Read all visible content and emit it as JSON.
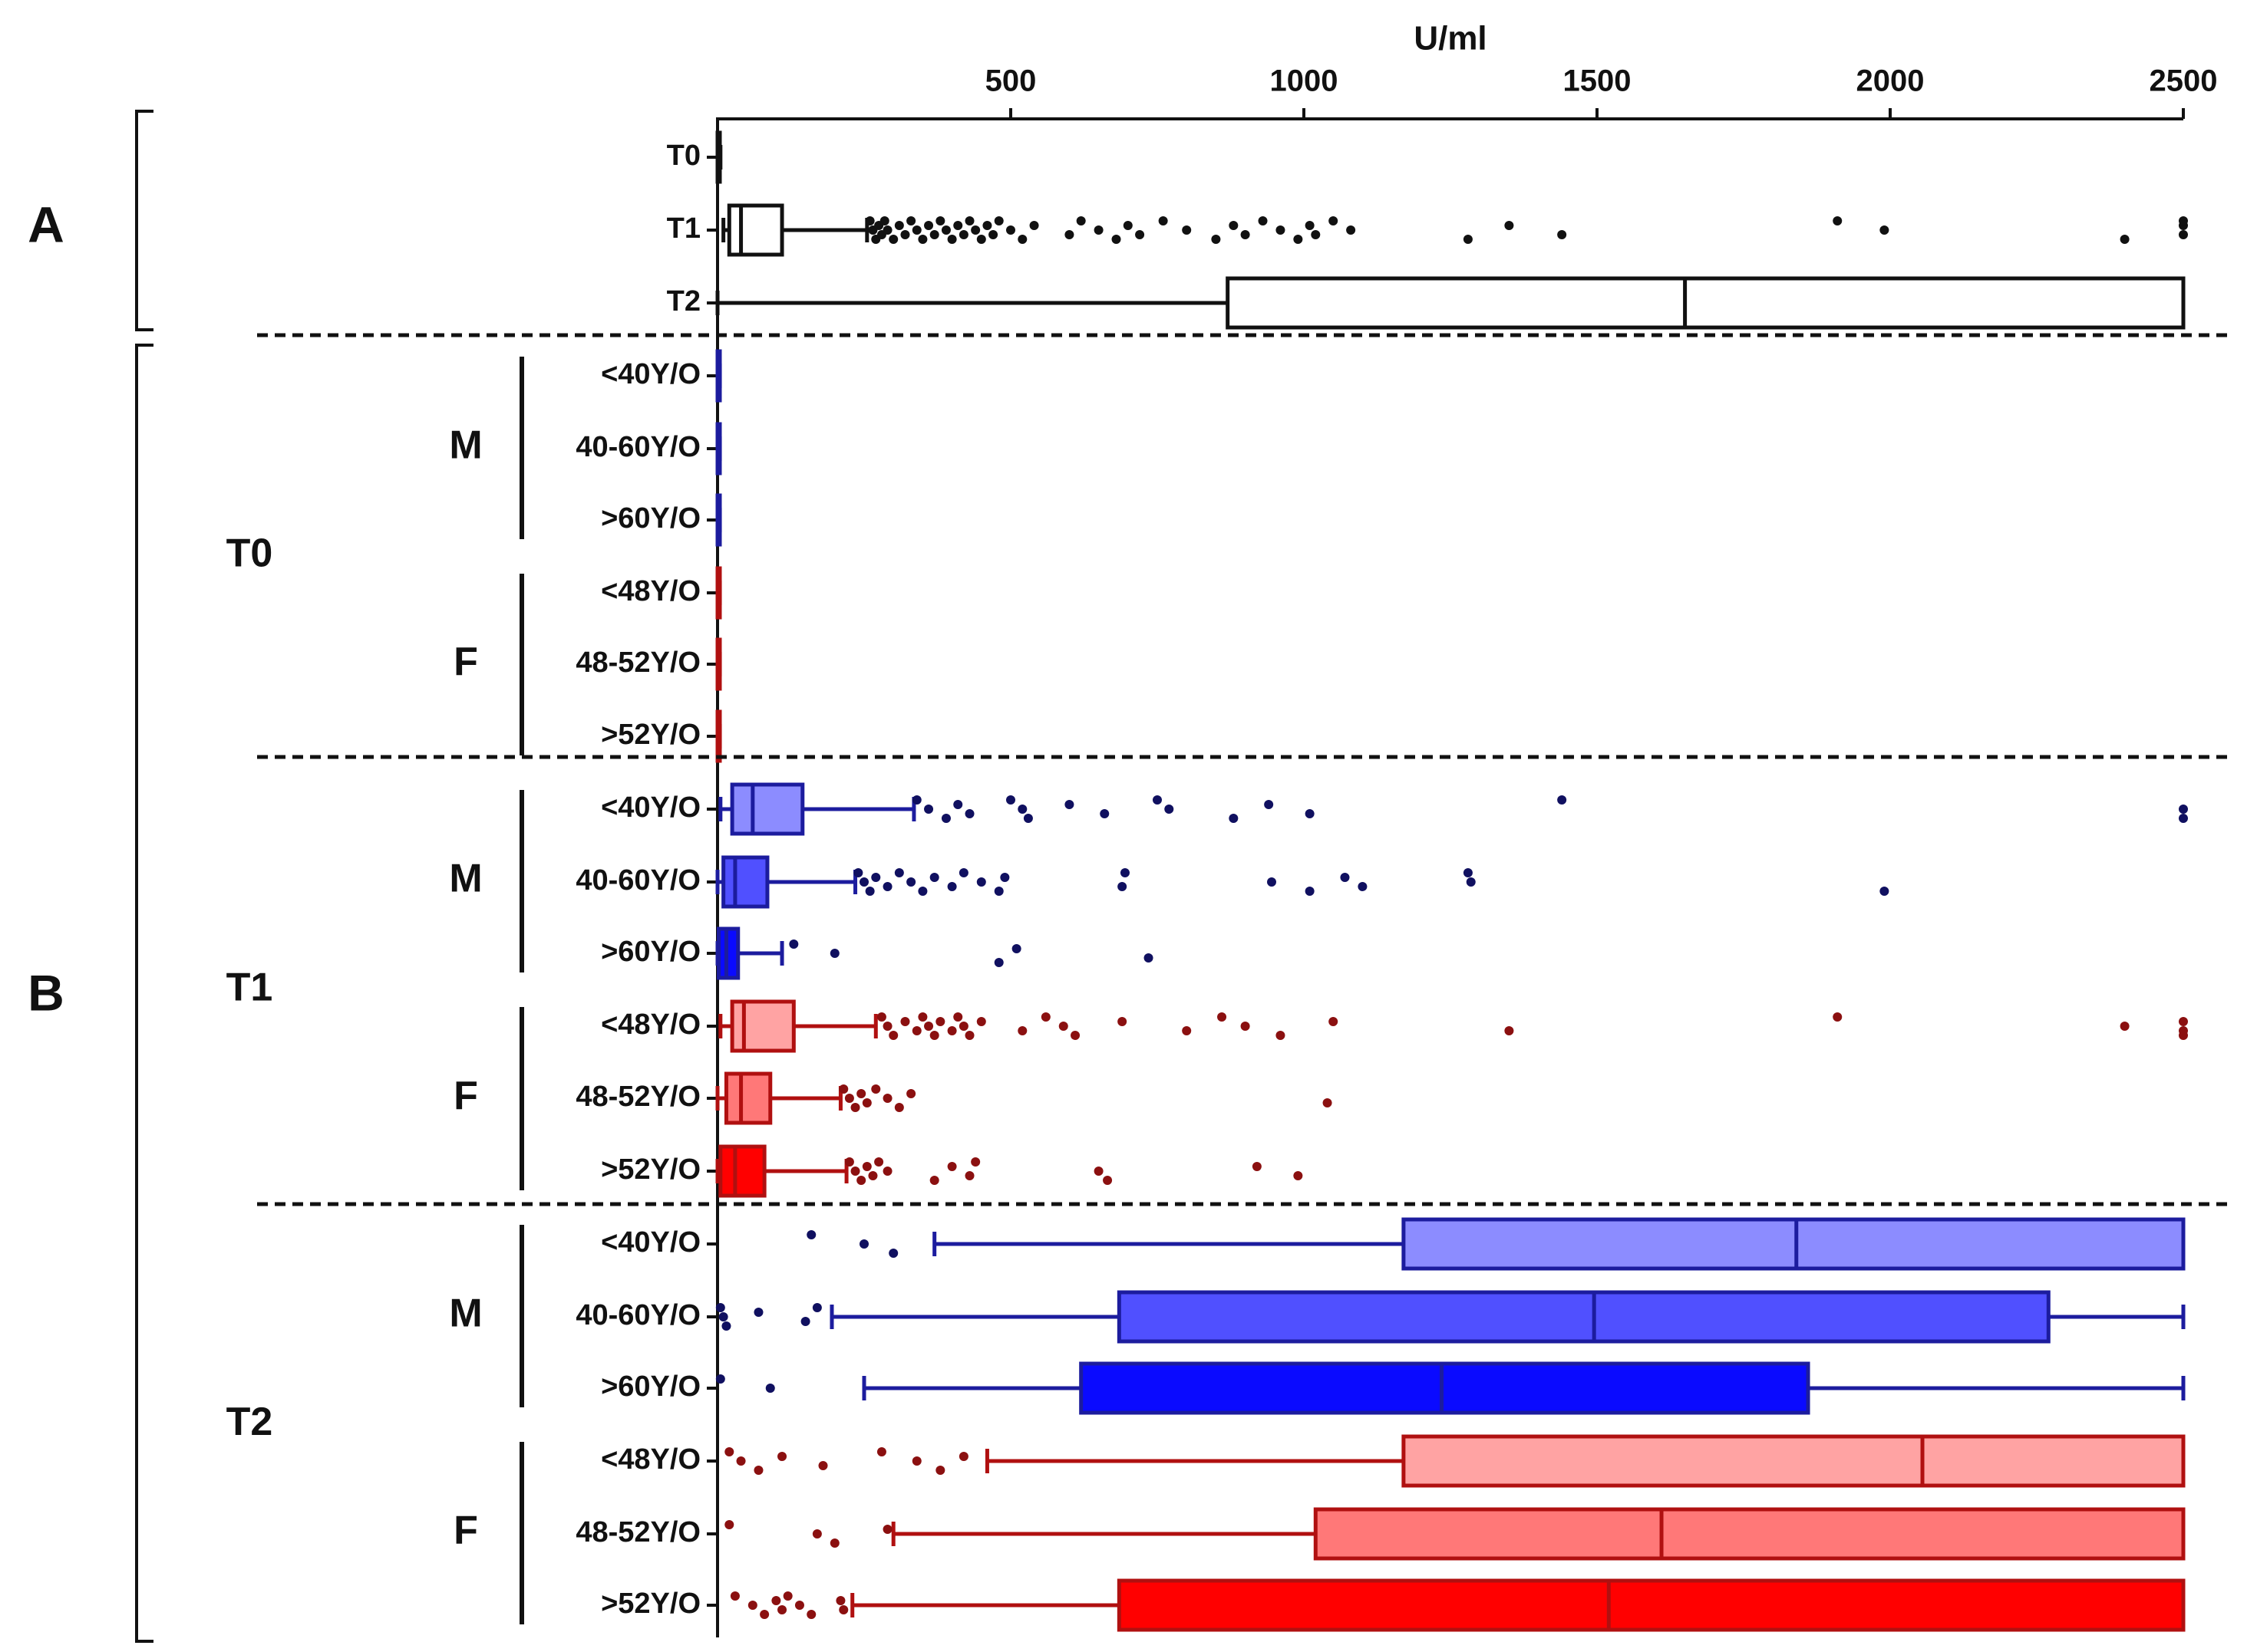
{
  "chart_data": {
    "type": "boxplot",
    "orientation": "horizontal",
    "xlabel": "U/ml",
    "xlim": [
      0,
      2500
    ],
    "xticks": [
      500,
      1000,
      1500,
      2000,
      2500
    ],
    "panels": [
      {
        "label": "A",
        "color_scheme": "black",
        "rows": [
          {
            "label": "T0",
            "whisker_low": 0,
            "q1": 0,
            "median": 0,
            "q3": 2,
            "whisker_high": 5,
            "outliers": []
          },
          {
            "label": "T1",
            "whisker_low": 10,
            "q1": 20,
            "median": 40,
            "q3": 110,
            "whisker_high": 255,
            "outliers": [
              260,
              265,
              270,
              275,
              280,
              285,
              290,
              300,
              310,
              320,
              330,
              340,
              350,
              360,
              370,
              380,
              390,
              400,
              410,
              420,
              430,
              440,
              450,
              460,
              470,
              480,
              500,
              520,
              540,
              600,
              620,
              650,
              680,
              700,
              720,
              760,
              800,
              850,
              880,
              900,
              930,
              960,
              990,
              1010,
              1020,
              1050,
              1080,
              1280,
              1350,
              1440,
              1910,
              1990,
              2400,
              2500,
              2500,
              2500
            ]
          },
          {
            "label": "T2",
            "whisker_low": 0,
            "q1": 870,
            "median": 1650,
            "q3": 2500,
            "whisker_high": 2500,
            "outliers": []
          }
        ]
      },
      {
        "label": "B",
        "groups": [
          {
            "time": "T0",
            "sexes": [
              {
                "sex": "M",
                "color": "blue",
                "rows": [
                  {
                    "label": "<40Y/O",
                    "whisker_low": 0,
                    "q1": 0,
                    "median": 1,
                    "q3": 2,
                    "whisker_high": 4,
                    "outliers": []
                  },
                  {
                    "label": "40-60Y/O",
                    "whisker_low": 0,
                    "q1": 0,
                    "median": 1,
                    "q3": 2,
                    "whisker_high": 4,
                    "outliers": []
                  },
                  {
                    "label": ">60Y/O",
                    "whisker_low": 0,
                    "q1": 0,
                    "median": 1,
                    "q3": 2,
                    "whisker_high": 4,
                    "outliers": []
                  }
                ]
              },
              {
                "sex": "F",
                "color": "red",
                "rows": [
                  {
                    "label": "<48Y/O",
                    "whisker_low": 0,
                    "q1": 0,
                    "median": 1,
                    "q3": 2,
                    "whisker_high": 4,
                    "outliers": []
                  },
                  {
                    "label": "48-52Y/O",
                    "whisker_low": 0,
                    "q1": 0,
                    "median": 1,
                    "q3": 2,
                    "whisker_high": 4,
                    "outliers": []
                  },
                  {
                    "label": ">52Y/O",
                    "whisker_low": 0,
                    "q1": 0,
                    "median": 1,
                    "q3": 2,
                    "whisker_high": 4,
                    "outliers": []
                  }
                ]
              }
            ]
          },
          {
            "time": "T1",
            "sexes": [
              {
                "sex": "M",
                "color": "blue",
                "rows": [
                  {
                    "label": "<40Y/O",
                    "whisker_low": 5,
                    "q1": 25,
                    "median": 60,
                    "q3": 145,
                    "whisker_high": 335,
                    "outliers": [
                      340,
                      360,
                      390,
                      410,
                      430,
                      500,
                      520,
                      530,
                      600,
                      660,
                      750,
                      770,
                      880,
                      940,
                      1010,
                      1440,
                      2500,
                      2500
                    ]
                  },
                  {
                    "label": "40-60Y/O",
                    "whisker_low": 0,
                    "q1": 10,
                    "median": 30,
                    "q3": 85,
                    "whisker_high": 235,
                    "outliers": [
                      240,
                      250,
                      260,
                      270,
                      290,
                      310,
                      330,
                      350,
                      370,
                      400,
                      420,
                      450,
                      480,
                      490,
                      690,
                      695,
                      945,
                      1010,
                      1070,
                      1100,
                      1280,
                      1285,
                      1990
                    ]
                  },
                  {
                    "label": ">60Y/O",
                    "whisker_low": 0,
                    "q1": 2,
                    "median": 15,
                    "q3": 35,
                    "whisker_high": 110,
                    "outliers": [
                      130,
                      200,
                      480,
                      510,
                      735
                    ]
                  }
                ]
              },
              {
                "sex": "F",
                "color": "red",
                "rows": [
                  {
                    "label": "<48Y/O",
                    "whisker_low": 5,
                    "q1": 25,
                    "median": 45,
                    "q3": 130,
                    "whisker_high": 270,
                    "outliers": [
                      280,
                      290,
                      300,
                      320,
                      340,
                      350,
                      360,
                      370,
                      380,
                      400,
                      410,
                      420,
                      430,
                      450,
                      520,
                      560,
                      590,
                      610,
                      690,
                      800,
                      860,
                      900,
                      960,
                      1050,
                      1350,
                      1910,
                      2400,
                      2500,
                      2500,
                      2500
                    ]
                  },
                  {
                    "label": "48-52Y/O",
                    "whisker_low": 0,
                    "q1": 15,
                    "median": 40,
                    "q3": 90,
                    "whisker_high": 210,
                    "outliers": [
                      215,
                      225,
                      235,
                      245,
                      255,
                      270,
                      290,
                      310,
                      330,
                      1040
                    ]
                  },
                  {
                    "label": ">52Y/O",
                    "whisker_low": 0,
                    "q1": 5,
                    "median": 30,
                    "q3": 80,
                    "whisker_high": 220,
                    "outliers": [
                      225,
                      235,
                      245,
                      255,
                      265,
                      275,
                      290,
                      370,
                      400,
                      430,
                      440,
                      650,
                      665,
                      920,
                      990
                    ]
                  }
                ]
              }
            ]
          },
          {
            "time": "T2",
            "sexes": [
              {
                "sex": "M",
                "color": "blue",
                "rows": [
                  {
                    "label": "<40Y/O",
                    "whisker_low": 370,
                    "q1": 1170,
                    "median": 1840,
                    "q3": 2500,
                    "whisker_high": 2500,
                    "outliers": [
                      160,
                      250,
                      300
                    ]
                  },
                  {
                    "label": "40-60Y/O",
                    "whisker_low": 195,
                    "q1": 685,
                    "median": 1495,
                    "q3": 2270,
                    "whisker_high": 2500,
                    "outliers": [
                      5,
                      10,
                      15,
                      70,
                      150,
                      170
                    ]
                  },
                  {
                    "label": ">60Y/O",
                    "whisker_low": 250,
                    "q1": 620,
                    "median": 1235,
                    "q3": 1860,
                    "whisker_high": 2500,
                    "outliers": [
                      5,
                      90
                    ]
                  }
                ]
              },
              {
                "sex": "F",
                "color": "red",
                "rows": [
                  {
                    "label": "<48Y/O",
                    "whisker_low": 460,
                    "q1": 1170,
                    "median": 2055,
                    "q3": 2500,
                    "whisker_high": 2500,
                    "outliers": [
                      20,
                      40,
                      70,
                      110,
                      180,
                      280,
                      340,
                      380,
                      420
                    ]
                  },
                  {
                    "label": "48-52Y/O",
                    "whisker_low": 300,
                    "q1": 1020,
                    "median": 1610,
                    "q3": 2500,
                    "whisker_high": 2500,
                    "outliers": [
                      20,
                      170,
                      200,
                      290
                    ]
                  },
                  {
                    "label": ">52Y/O",
                    "whisker_low": 230,
                    "q1": 685,
                    "median": 1520,
                    "q3": 2500,
                    "whisker_high": 2500,
                    "outliers": [
                      30,
                      60,
                      80,
                      100,
                      110,
                      120,
                      140,
                      160,
                      210,
                      215
                    ]
                  }
                ]
              }
            ]
          }
        ]
      }
    ],
    "colors": {
      "black": {
        "stroke": "#111111",
        "fill": "#ffffff",
        "dot": "#111111"
      },
      "blue": {
        "<40Y/O": "#8c8cff",
        "40-60Y/O": "#5050ff",
        ">60Y/O": "#0a0aff",
        "stroke": "#1c1c9e",
        "dot": "#101060"
      },
      "red": {
        "<48Y/O": "#ffa3a3",
        "48-52Y/O": "#ff7878",
        ">52Y/O": "#ff0000",
        "stroke": "#b01010",
        "dot": "#8b1010"
      }
    }
  }
}
